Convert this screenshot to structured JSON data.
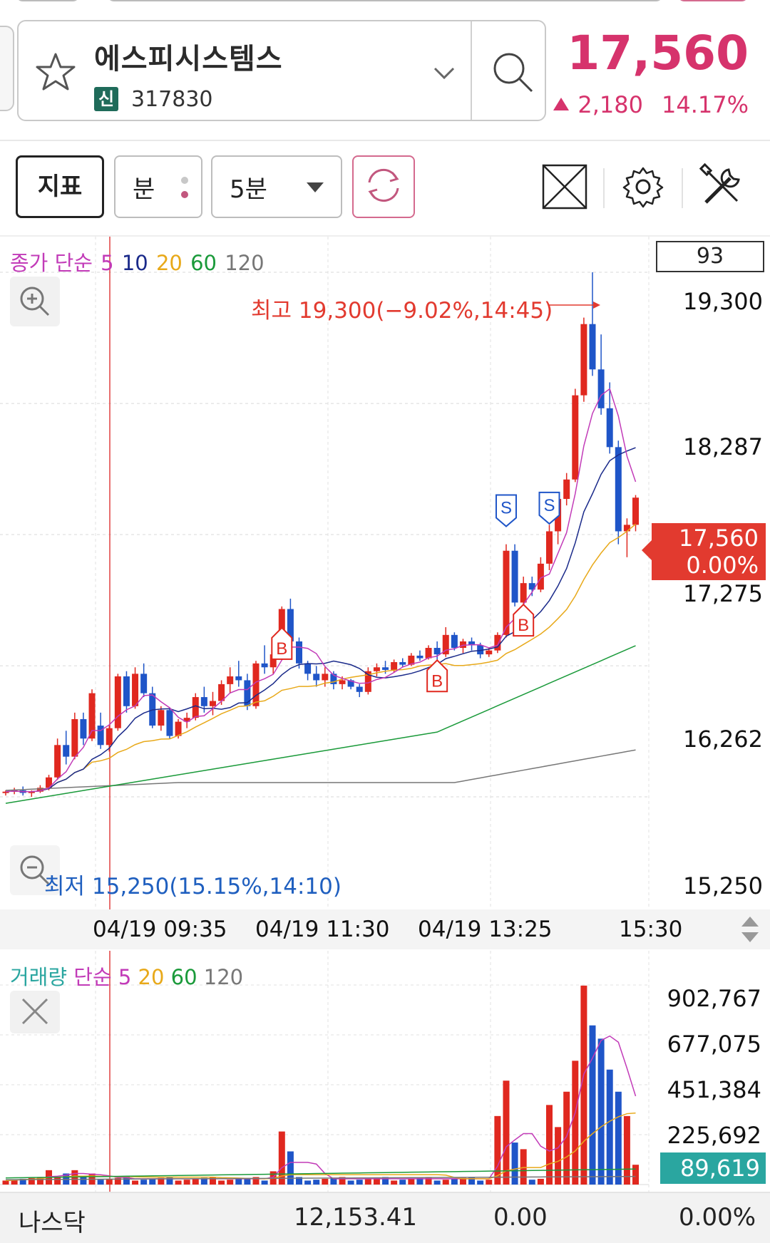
{
  "header": {
    "stock_name": "에스피시스템스",
    "market_badge": "신",
    "stock_code": "317830",
    "price": "17,560",
    "change": "2,180",
    "change_pct": "14.17%"
  },
  "toolbar": {
    "indicator_label": "지표",
    "unit_label": "분",
    "period_label": "5분"
  },
  "chart": {
    "legend": {
      "prefix": "종가 단순",
      "ma5": "5",
      "ma10": "10",
      "ma20": "20",
      "ma60": "60",
      "ma120": "120"
    },
    "count": "93",
    "price_axis": [
      "19,300",
      "18,287",
      "17,275",
      "16,262",
      "15,250"
    ],
    "current_price": "17,560",
    "current_pct": "0.00%",
    "high_note": "최고 19,300(−9.02%,14:45)",
    "low_note": "최저 15,250(15.15%,14:10)",
    "x_labels": [
      "04/19 09:35",
      "04/19 11:30",
      "04/19 13:25",
      "15:30"
    ],
    "colors": {
      "up": "#e0281f",
      "down": "#1f55c8",
      "ma5": "#c23bb8",
      "ma10": "#1a2a8a",
      "ma20": "#e8a91a",
      "ma60": "#1a9a3a",
      "ma120": "#777777"
    }
  },
  "volume": {
    "legend": {
      "prefix_a": "거래량",
      "prefix_b": "단순",
      "ma5": "5",
      "ma20": "20",
      "ma60": "60",
      "ma120": "120"
    },
    "axis": [
      "902,767",
      "677,075",
      "451,384",
      "225,692"
    ],
    "current": "89,619"
  },
  "bottom_bar": {
    "index_name": "나스닥",
    "index_value": "12,153.41",
    "index_change": "0.00",
    "index_pct": "0.00%"
  },
  "chart_data": {
    "type": "candlestick",
    "interval": "5분",
    "y_axis_ticks": [
      19300,
      18287,
      17275,
      16262,
      15250
    ],
    "high": 19300,
    "low": 15250,
    "last": 17560,
    "candles": [
      [
        15280,
        15300,
        15260,
        15290
      ],
      [
        15290,
        15320,
        15270,
        15300
      ],
      [
        15300,
        15330,
        15260,
        15280
      ],
      [
        15280,
        15300,
        15250,
        15290
      ],
      [
        15290,
        15340,
        15280,
        15320
      ],
      [
        15320,
        15420,
        15300,
        15400
      ],
      [
        15400,
        15700,
        15380,
        15650
      ],
      [
        15650,
        15760,
        15500,
        15560
      ],
      [
        15560,
        15900,
        15540,
        15850
      ],
      [
        15850,
        15900,
        15650,
        15700
      ],
      [
        15700,
        16080,
        15680,
        16050
      ],
      [
        15800,
        15900,
        15620,
        15650
      ],
      [
        15650,
        15800,
        15600,
        15780
      ],
      [
        15780,
        16200,
        15760,
        16180
      ],
      [
        16180,
        16220,
        15900,
        15950
      ],
      [
        15950,
        16250,
        15930,
        16200
      ],
      [
        16200,
        16280,
        16020,
        16050
      ],
      [
        16050,
        16100,
        15780,
        15800
      ],
      [
        15800,
        15950,
        15760,
        15920
      ],
      [
        15920,
        15940,
        15700,
        15720
      ],
      [
        15720,
        15850,
        15700,
        15830
      ],
      [
        15830,
        15900,
        15780,
        15860
      ],
      [
        15860,
        16050,
        15840,
        16020
      ],
      [
        16020,
        16100,
        15900,
        15950
      ],
      [
        15950,
        16060,
        15880,
        15990
      ],
      [
        15990,
        16150,
        15960,
        16120
      ],
      [
        16120,
        16250,
        16050,
        16180
      ],
      [
        16180,
        16300,
        16100,
        16150
      ],
      [
        16150,
        16200,
        15920,
        15950
      ],
      [
        15950,
        16300,
        15930,
        16280
      ],
      [
        16280,
        16420,
        16200,
        16250
      ],
      [
        16250,
        16380,
        16200,
        16350
      ],
      [
        16350,
        16720,
        16330,
        16700
      ],
      [
        16700,
        16780,
        16400,
        16450
      ],
      [
        16450,
        16480,
        16240,
        16280
      ],
      [
        16280,
        16300,
        16150,
        16200
      ],
      [
        16200,
        16260,
        16100,
        16150
      ],
      [
        16150,
        16250,
        16100,
        16200
      ],
      [
        16200,
        16220,
        16080,
        16120
      ],
      [
        16120,
        16180,
        16080,
        16150
      ],
      [
        16150,
        16160,
        16080,
        16100
      ],
      [
        16100,
        16120,
        16020,
        16060
      ],
      [
        16060,
        16250,
        16040,
        16220
      ],
      [
        16220,
        16280,
        16180,
        16250
      ],
      [
        16250,
        16300,
        16200,
        16230
      ],
      [
        16230,
        16310,
        16210,
        16290
      ],
      [
        16290,
        16320,
        16250,
        16270
      ],
      [
        16270,
        16360,
        16260,
        16340
      ],
      [
        16340,
        16380,
        16300,
        16320
      ],
      [
        16320,
        16420,
        16310,
        16400
      ],
      [
        16400,
        16450,
        16300,
        16350
      ],
      [
        16350,
        16560,
        16330,
        16500
      ],
      [
        16500,
        16520,
        16380,
        16400
      ],
      [
        16400,
        16470,
        16360,
        16450
      ],
      [
        16450,
        16480,
        16380,
        16420
      ],
      [
        16420,
        16440,
        16320,
        16350
      ],
      [
        16350,
        16400,
        16330,
        16380
      ],
      [
        16380,
        16520,
        16360,
        16500
      ],
      [
        16500,
        17200,
        16480,
        17150
      ],
      [
        17150,
        17200,
        16720,
        16750
      ],
      [
        16750,
        16950,
        16700,
        16900
      ],
      [
        16900,
        16950,
        16800,
        16850
      ],
      [
        16850,
        17100,
        16830,
        17050
      ],
      [
        17050,
        17350,
        17000,
        17300
      ],
      [
        17300,
        17600,
        17200,
        17550
      ],
      [
        17550,
        17750,
        17500,
        17700
      ],
      [
        17700,
        18400,
        17680,
        18350
      ],
      [
        18350,
        18950,
        18300,
        18900
      ],
      [
        18900,
        19300,
        18500,
        18550
      ],
      [
        18550,
        18820,
        18200,
        18250
      ],
      [
        18250,
        18450,
        17900,
        17950
      ],
      [
        17950,
        18000,
        17200,
        17300
      ],
      [
        17300,
        17400,
        17100,
        17350
      ],
      [
        17350,
        17580,
        17300,
        17560
      ]
    ],
    "volume_ticks": [
      902767,
      677075,
      451384,
      225692
    ],
    "volume_last": 89619
  }
}
